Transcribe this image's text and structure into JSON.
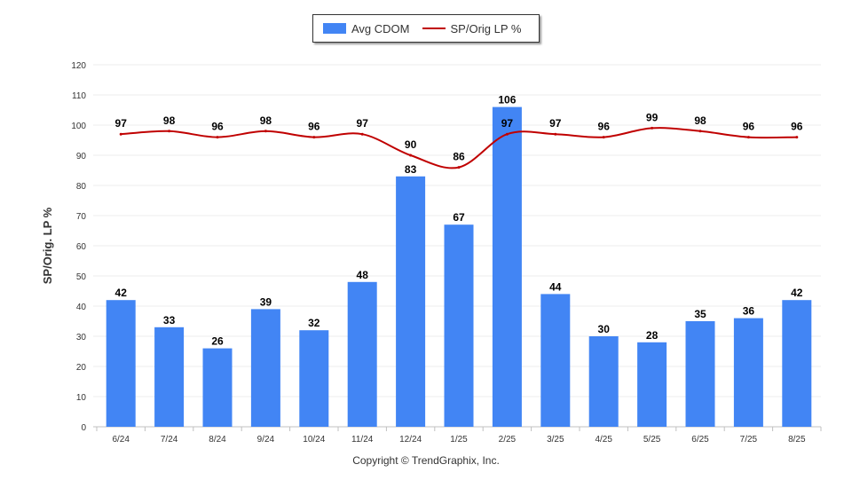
{
  "chart_data": {
    "type": "bar",
    "categories": [
      "6/24",
      "7/24",
      "8/24",
      "9/24",
      "10/24",
      "11/24",
      "12/24",
      "1/25",
      "2/25",
      "3/25",
      "4/25",
      "5/25",
      "6/25",
      "7/25",
      "8/25"
    ],
    "series": [
      {
        "name": "Avg CDOM",
        "type": "bar",
        "color": "#4285f4",
        "values": [
          42,
          33,
          26,
          39,
          32,
          48,
          83,
          67,
          106,
          44,
          30,
          28,
          35,
          36,
          42
        ]
      },
      {
        "name": "SP/Orig LP %",
        "type": "line",
        "color": "#c00000",
        "values": [
          97,
          98,
          96,
          98,
          96,
          97,
          90,
          86,
          97,
          97,
          96,
          99,
          98,
          96,
          96
        ]
      }
    ],
    "ylabel": "SP/Orig. LP %",
    "ylim": [
      0,
      120
    ],
    "yticks": [
      0,
      10,
      20,
      30,
      40,
      50,
      60,
      70,
      80,
      90,
      100,
      110,
      120
    ],
    "grid": true,
    "legend_position": "top-center"
  },
  "legend": {
    "bar_label": "Avg CDOM",
    "line_label": "SP/Orig LP %"
  },
  "footer": {
    "copyright": "Copyright © TrendGraphix, Inc."
  }
}
